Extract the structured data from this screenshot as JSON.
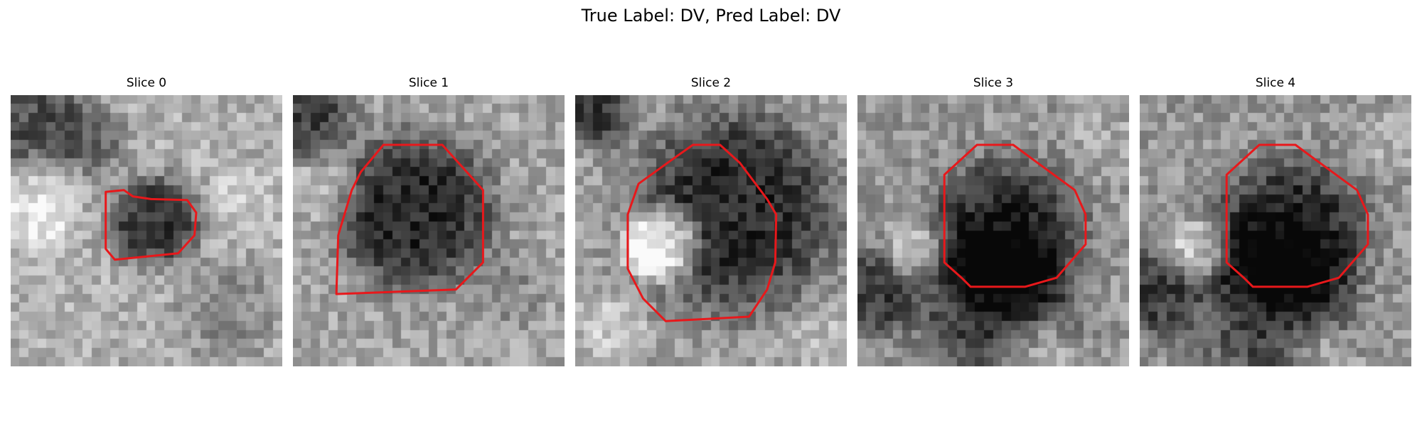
{
  "figure": {
    "title": "True Label: DV, Pred Label: DV",
    "contour_color": "#e8181b"
  },
  "panels": [
    {
      "title": "Slice 0"
    },
    {
      "title": "Slice 1"
    },
    {
      "title": "Slice 2"
    },
    {
      "title": "Slice 3"
    },
    {
      "title": "Slice 4"
    }
  ]
}
